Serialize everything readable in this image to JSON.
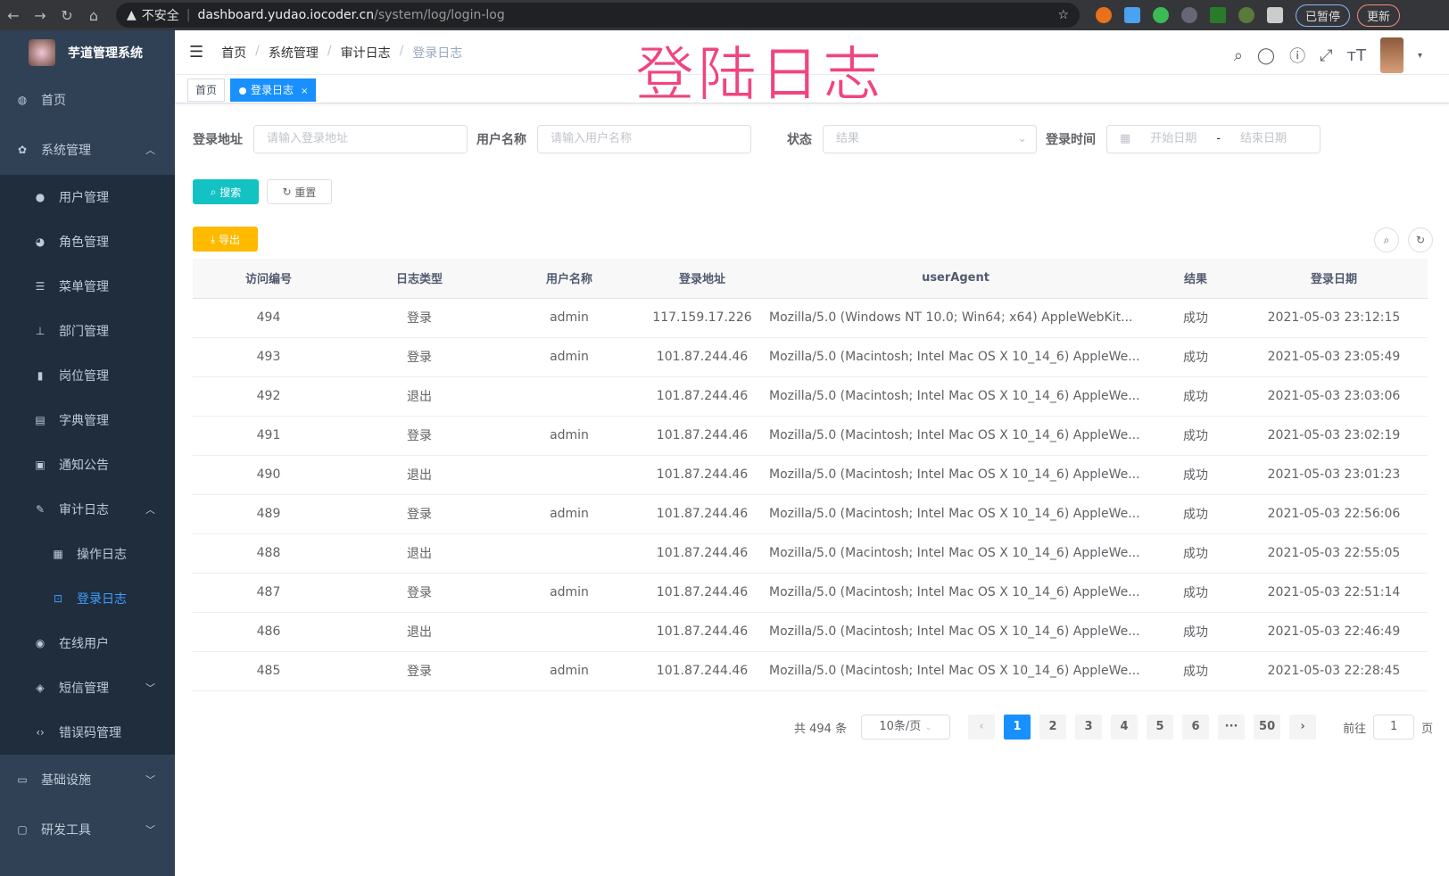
{
  "browser": {
    "back": "←",
    "forward": "→",
    "reload": "↻",
    "home": "⌂",
    "security": "不安全",
    "url_host": "dashboard.yudao.iocoder.cn",
    "url_path": "/system/log/login-log",
    "profile": "已暂停",
    "update": "更新"
  },
  "overlay_title": "登陆日志",
  "sidebar": {
    "title": "芋道管理系统",
    "items": [
      {
        "label": "首页",
        "icon": "dashboard-icon"
      },
      {
        "label": "系统管理",
        "icon": "gear-icon"
      },
      {
        "label": "用户管理",
        "icon": "user-icon"
      },
      {
        "label": "角色管理",
        "icon": "role-icon"
      },
      {
        "label": "菜单管理",
        "icon": "menu-icon"
      },
      {
        "label": "部门管理",
        "icon": "tree-icon"
      },
      {
        "label": "岗位管理",
        "icon": "post-icon"
      },
      {
        "label": "字典管理",
        "icon": "dict-icon"
      },
      {
        "label": "通知公告",
        "icon": "message-icon"
      },
      {
        "label": "审计日志",
        "icon": "log-icon"
      },
      {
        "label": "操作日志",
        "icon": "form-icon"
      },
      {
        "label": "登录日志",
        "icon": "logininfor-icon"
      },
      {
        "label": "在线用户",
        "icon": "online-icon"
      },
      {
        "label": "短信管理",
        "icon": "validCode-icon"
      },
      {
        "label": "错误码管理",
        "icon": "code-icon"
      },
      {
        "label": "基础设施",
        "icon": "monitor-icon"
      },
      {
        "label": "研发工具",
        "icon": "tool-icon"
      }
    ]
  },
  "breadcrumb": [
    "首页",
    "系统管理",
    "审计日志",
    "登录日志"
  ],
  "tags": [
    {
      "label": "首页"
    },
    {
      "label": "登录日志",
      "close": "×"
    }
  ],
  "filters": {
    "address": {
      "label": "登录地址",
      "placeholder": "请输入登录地址"
    },
    "username": {
      "label": "用户名称",
      "placeholder": "请输入用户名称"
    },
    "status": {
      "label": "状态",
      "placeholder": "结果"
    },
    "time": {
      "label": "登录时间",
      "start": "开始日期",
      "sep": "-",
      "end": "结束日期"
    }
  },
  "buttons": {
    "search": "搜索",
    "reset": "重置",
    "export": "导出"
  },
  "colors": {
    "sidebar": "#304156",
    "primary": "#1890ff",
    "search": "#13c2c2",
    "export": "#ffba00",
    "overlay": "#f0457f"
  },
  "table": {
    "columns": [
      "访问编号",
      "日志类型",
      "用户名称",
      "登录地址",
      "userAgent",
      "结果",
      "登录日期"
    ],
    "rows": [
      [
        "494",
        "登录",
        "admin",
        "117.159.17.226",
        "Mozilla/5.0 (Windows NT 10.0; Win64; x64) AppleWebKit...",
        "成功",
        "2021-05-03 23:12:15"
      ],
      [
        "493",
        "登录",
        "admin",
        "101.87.244.46",
        "Mozilla/5.0 (Macintosh; Intel Mac OS X 10_14_6) AppleWe...",
        "成功",
        "2021-05-03 23:05:49"
      ],
      [
        "492",
        "退出",
        "",
        "101.87.244.46",
        "Mozilla/5.0 (Macintosh; Intel Mac OS X 10_14_6) AppleWe...",
        "成功",
        "2021-05-03 23:03:06"
      ],
      [
        "491",
        "登录",
        "admin",
        "101.87.244.46",
        "Mozilla/5.0 (Macintosh; Intel Mac OS X 10_14_6) AppleWe...",
        "成功",
        "2021-05-03 23:02:19"
      ],
      [
        "490",
        "退出",
        "",
        "101.87.244.46",
        "Mozilla/5.0 (Macintosh; Intel Mac OS X 10_14_6) AppleWe...",
        "成功",
        "2021-05-03 23:01:23"
      ],
      [
        "489",
        "登录",
        "admin",
        "101.87.244.46",
        "Mozilla/5.0 (Macintosh; Intel Mac OS X 10_14_6) AppleWe...",
        "成功",
        "2021-05-03 22:56:06"
      ],
      [
        "488",
        "退出",
        "",
        "101.87.244.46",
        "Mozilla/5.0 (Macintosh; Intel Mac OS X 10_14_6) AppleWe...",
        "成功",
        "2021-05-03 22:55:05"
      ],
      [
        "487",
        "登录",
        "admin",
        "101.87.244.46",
        "Mozilla/5.0 (Macintosh; Intel Mac OS X 10_14_6) AppleWe...",
        "成功",
        "2021-05-03 22:51:14"
      ],
      [
        "486",
        "退出",
        "",
        "101.87.244.46",
        "Mozilla/5.0 (Macintosh; Intel Mac OS X 10_14_6) AppleWe...",
        "成功",
        "2021-05-03 22:46:49"
      ],
      [
        "485",
        "登录",
        "admin",
        "101.87.244.46",
        "Mozilla/5.0 (Macintosh; Intel Mac OS X 10_14_6) AppleWe...",
        "成功",
        "2021-05-03 22:28:45"
      ]
    ]
  },
  "pagination": {
    "total": "共 494 条",
    "page_size": "10条/页",
    "pages": [
      "1",
      "2",
      "3",
      "4",
      "5",
      "6",
      "···",
      "50"
    ],
    "current": "1",
    "prev": "‹",
    "next": "›",
    "goto_label": "前往",
    "goto_value": "1",
    "goto_suffix": "页"
  }
}
